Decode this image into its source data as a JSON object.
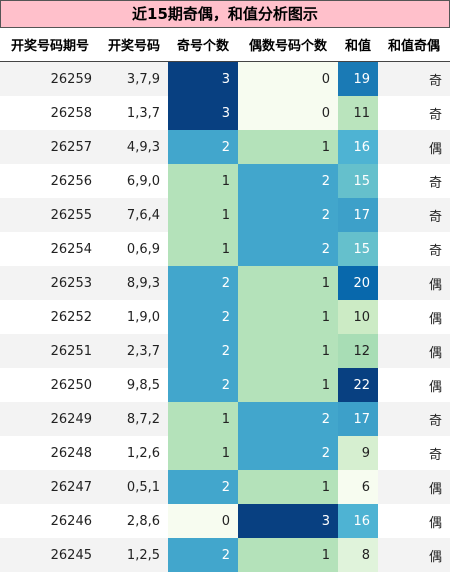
{
  "title": "近15期奇偶，和值分析图示",
  "table": {
    "header": [
      "开奖号码期号",
      "开奖号码",
      "奇号个数",
      "偶数号码个数",
      "和值",
      "和值奇偶"
    ],
    "rows": [
      [
        "26259",
        "3,7,9",
        3,
        0,
        19,
        "奇"
      ],
      [
        "26258",
        "1,3,7",
        3,
        0,
        11,
        "奇"
      ],
      [
        "26257",
        "4,9,3",
        2,
        1,
        16,
        "偶"
      ],
      [
        "26256",
        "6,9,0",
        1,
        2,
        15,
        "奇"
      ],
      [
        "26255",
        "7,6,4",
        1,
        2,
        17,
        "奇"
      ],
      [
        "26254",
        "0,6,9",
        1,
        2,
        15,
        "奇"
      ],
      [
        "26253",
        "8,9,3",
        2,
        1,
        20,
        "偶"
      ],
      [
        "26252",
        "1,9,0",
        2,
        1,
        10,
        "偶"
      ],
      [
        "26251",
        "2,3,7",
        2,
        1,
        12,
        "偶"
      ],
      [
        "26250",
        "9,8,5",
        2,
        1,
        22,
        "偶"
      ],
      [
        "26249",
        "8,7,2",
        1,
        2,
        17,
        "奇"
      ],
      [
        "26248",
        "1,2,6",
        1,
        2,
        9,
        "奇"
      ],
      [
        "26247",
        "0,5,1",
        2,
        1,
        6,
        "偶"
      ],
      [
        "26246",
        "2,8,6",
        0,
        3,
        16,
        "偶"
      ],
      [
        "26245",
        "1,2,5",
        2,
        1,
        8,
        "偶"
      ]
    ]
  }
}
